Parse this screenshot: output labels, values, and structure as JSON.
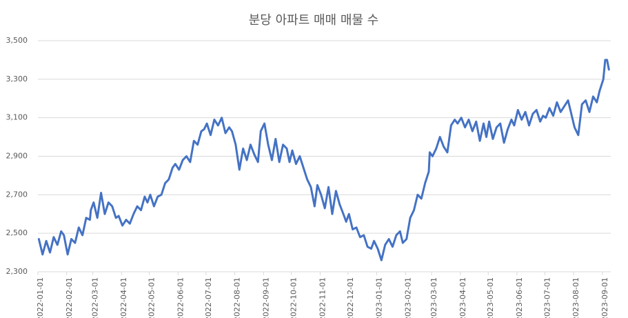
{
  "chart_data": {
    "type": "line",
    "title": "분당 아파트 매매 매물 수",
    "xlim": [
      "2022-01-01",
      "2023-09-10"
    ],
    "xticks": [
      "2022-01-01",
      "2022-02-01",
      "2022-03-01",
      "2022-04-01",
      "2022-05-01",
      "2022-06-01",
      "2022-07-01",
      "2022-08-01",
      "2022-09-01",
      "2022-10-01",
      "2022-11-01",
      "2022-12-01",
      "2023-01-01",
      "2023-02-01",
      "2023-03-01",
      "2023-04-01",
      "2023-05-01",
      "2023-06-01",
      "2023-07-01",
      "2023-08-01",
      "2023-09-01"
    ],
    "ylim": [
      2300,
      3500
    ],
    "yticks": [
      {
        "value": 2300,
        "label": "2,300"
      },
      {
        "value": 2500,
        "label": "2,500"
      },
      {
        "value": 2700,
        "label": "2,700"
      },
      {
        "value": 2900,
        "label": "2,900"
      },
      {
        "value": 3100,
        "label": "3,100"
      },
      {
        "value": 3300,
        "label": "3,300"
      },
      {
        "value": 3500,
        "label": "3,500"
      }
    ],
    "grid": true,
    "x": [
      "2022-01-02",
      "2022-01-06",
      "2022-01-10",
      "2022-01-14",
      "2022-01-18",
      "2022-01-22",
      "2022-01-26",
      "2022-01-29",
      "2022-02-02",
      "2022-02-06",
      "2022-02-10",
      "2022-02-14",
      "2022-02-18",
      "2022-02-22",
      "2022-02-26",
      "2022-02-27",
      "2022-03-02",
      "2022-03-06",
      "2022-03-10",
      "2022-03-14",
      "2022-03-18",
      "2022-03-22",
      "2022-03-26",
      "2022-03-29",
      "2022-04-02",
      "2022-04-06",
      "2022-04-10",
      "2022-04-14",
      "2022-04-18",
      "2022-04-22",
      "2022-04-26",
      "2022-04-29",
      "2022-05-02",
      "2022-05-06",
      "2022-05-10",
      "2022-05-14",
      "2022-05-18",
      "2022-05-22",
      "2022-05-26",
      "2022-05-29",
      "2022-06-02",
      "2022-06-06",
      "2022-06-10",
      "2022-06-14",
      "2022-06-18",
      "2022-06-22",
      "2022-06-26",
      "2022-06-29",
      "2022-07-02",
      "2022-07-06",
      "2022-07-10",
      "2022-07-14",
      "2022-07-18",
      "2022-07-22",
      "2022-07-26",
      "2022-07-29",
      "2022-08-02",
      "2022-08-06",
      "2022-08-10",
      "2022-08-14",
      "2022-08-18",
      "2022-08-22",
      "2022-08-26",
      "2022-08-29",
      "2022-09-02",
      "2022-09-06",
      "2022-09-10",
      "2022-09-14",
      "2022-09-18",
      "2022-09-22",
      "2022-09-26",
      "2022-09-29",
      "2022-10-02",
      "2022-10-06",
      "2022-10-10",
      "2022-10-14",
      "2022-10-18",
      "2022-10-22",
      "2022-10-26",
      "2022-10-29",
      "2022-11-02",
      "2022-11-06",
      "2022-11-10",
      "2022-11-14",
      "2022-11-18",
      "2022-11-22",
      "2022-11-26",
      "2022-11-29",
      "2022-12-02",
      "2022-12-06",
      "2022-12-10",
      "2022-12-14",
      "2022-12-18",
      "2022-12-22",
      "2022-12-26",
      "2022-12-29",
      "2023-01-02",
      "2023-01-06",
      "2023-01-10",
      "2023-01-14",
      "2023-01-18",
      "2023-01-22",
      "2023-01-26",
      "2023-01-29",
      "2023-02-02",
      "2023-02-06",
      "2023-02-10",
      "2023-02-14",
      "2023-02-18",
      "2023-02-22",
      "2023-02-26",
      "2023-02-27",
      "2023-03-02",
      "2023-03-06",
      "2023-03-10",
      "2023-03-14",
      "2023-03-18",
      "2023-03-22",
      "2023-03-26",
      "2023-03-29",
      "2023-04-02",
      "2023-04-06",
      "2023-04-10",
      "2023-04-14",
      "2023-04-18",
      "2023-04-22",
      "2023-04-26",
      "2023-04-29",
      "2023-05-02",
      "2023-05-06",
      "2023-05-10",
      "2023-05-14",
      "2023-05-18",
      "2023-05-22",
      "2023-05-26",
      "2023-05-29",
      "2023-06-02",
      "2023-06-06",
      "2023-06-10",
      "2023-06-14",
      "2023-06-18",
      "2023-06-22",
      "2023-06-26",
      "2023-06-29",
      "2023-07-02",
      "2023-07-06",
      "2023-07-10",
      "2023-07-14",
      "2023-07-18",
      "2023-07-22",
      "2023-07-26",
      "2023-07-29",
      "2023-08-02",
      "2023-08-06",
      "2023-08-10",
      "2023-08-14",
      "2023-08-18",
      "2023-08-22",
      "2023-08-26",
      "2023-08-29",
      "2023-09-02",
      "2023-09-04",
      "2023-09-06",
      "2023-09-08"
    ],
    "series": [
      {
        "color": "#4472c4",
        "values": [
          2470,
          2390,
          2460,
          2400,
          2480,
          2440,
          2510,
          2490,
          2390,
          2470,
          2450,
          2530,
          2490,
          2580,
          2570,
          2620,
          2660,
          2580,
          2710,
          2600,
          2660,
          2640,
          2580,
          2590,
          2540,
          2570,
          2550,
          2600,
          2640,
          2620,
          2690,
          2660,
          2700,
          2640,
          2690,
          2700,
          2760,
          2780,
          2840,
          2860,
          2830,
          2880,
          2900,
          2870,
          2980,
          2960,
          3030,
          3040,
          3070,
          3010,
          3090,
          3060,
          3100,
          3020,
          3050,
          3030,
          2960,
          2830,
          2940,
          2880,
          2960,
          2910,
          2870,
          3030,
          3070,
          2960,
          2880,
          2990,
          2870,
          2960,
          2940,
          2870,
          2930,
          2860,
          2900,
          2840,
          2780,
          2740,
          2640,
          2750,
          2700,
          2630,
          2740,
          2600,
          2720,
          2650,
          2600,
          2560,
          2600,
          2520,
          2530,
          2480,
          2490,
          2430,
          2420,
          2460,
          2420,
          2360,
          2440,
          2470,
          2430,
          2490,
          2510,
          2450,
          2470,
          2580,
          2620,
          2700,
          2680,
          2760,
          2820,
          2920,
          2900,
          2940,
          3000,
          2950,
          2920,
          3060,
          3090,
          3070,
          3100,
          3050,
          3090,
          3030,
          3080,
          2980,
          3070,
          3000,
          3080,
          2990,
          3050,
          3070,
          2970,
          3040,
          3090,
          3060,
          3140,
          3090,
          3130,
          3060,
          3120,
          3140,
          3080,
          3110,
          3100,
          3150,
          3110,
          3180,
          3130,
          3160,
          3190,
          3130,
          3050,
          3010,
          3170,
          3190,
          3130,
          3210,
          3180,
          3240,
          3300,
          3400,
          3400,
          3350
        ]
      }
    ]
  }
}
